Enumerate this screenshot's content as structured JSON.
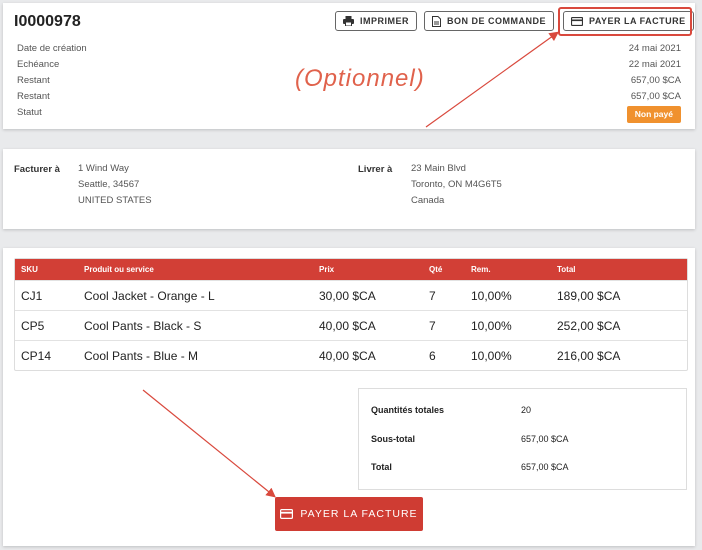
{
  "header": {
    "invoice_number": "I0000978",
    "labels": [
      "Date de création",
      "Echéance",
      "Restant",
      "Restant",
      "Statut"
    ],
    "values": [
      "24 mai 2021",
      "22 mai 2021",
      "657,00 $CA",
      "657,00 $CA"
    ],
    "status": "Non payé",
    "buttons": {
      "print": "IMPRIMER",
      "purchase_order": "BON DE COMMANDE",
      "pay": "PAYER LA FACTURE"
    },
    "optional_note": "(Optionnel)"
  },
  "address": {
    "bill_to_label": "Facturer à",
    "bill_to": [
      "1 Wind Way",
      "Seattle, 34567",
      "UNITED STATES"
    ],
    "ship_to_label": "Livrer à",
    "ship_to": [
      "23 Main Blvd",
      "Toronto, ON M4G6T5",
      "Canada"
    ]
  },
  "items": {
    "columns": [
      "SKU",
      "Produit ou service",
      "Prix",
      "Qté",
      "Rem.",
      "Total"
    ],
    "rows": [
      [
        "CJ1",
        "Cool Jacket - Orange - L",
        "30,00 $CA",
        "7",
        "10,00%",
        "189,00 $CA"
      ],
      [
        "CP5",
        "Cool Pants - Black - S",
        "40,00 $CA",
        "7",
        "10,00%",
        "252,00 $CA"
      ],
      [
        "CP14",
        "Cool Pants - Blue - M",
        "40,00 $CA",
        "6",
        "10,00%",
        "216,00 $CA"
      ]
    ]
  },
  "totals": {
    "qty_label": "Quantités totales",
    "qty_value": "20",
    "subtotal_label": "Sous-total",
    "subtotal_value": "657,00 $CA",
    "total_label": "Total",
    "total_value": "657,00 $CA"
  },
  "pay_button": "PAYER LA FACTURE",
  "colors": {
    "accent": "#d23f36",
    "status": "#f0912e",
    "annotation": "#e0624c"
  }
}
